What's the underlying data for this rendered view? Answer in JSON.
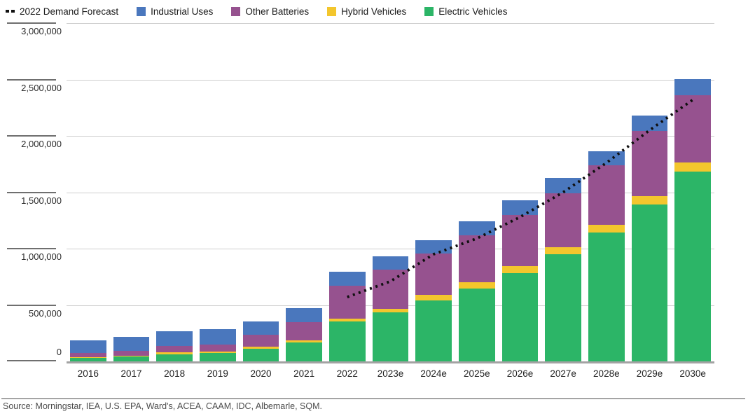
{
  "legend": {
    "items": [
      {
        "label": "2022 Demand Forecast",
        "type": "dotted-line",
        "color": "#111111"
      },
      {
        "label": "Industrial Uses",
        "type": "square",
        "color": "#4a77bd"
      },
      {
        "label": "Other Batteries",
        "type": "square",
        "color": "#96528f"
      },
      {
        "label": "Hybrid Vehicles",
        "type": "square",
        "color": "#f3c62d"
      },
      {
        "label": "Electric Vehicles",
        "type": "square",
        "color": "#2cb567"
      }
    ]
  },
  "y_axis": {
    "tick_labels": [
      "3,000,000",
      "2,500,000",
      "2,000,000",
      "1,500,000",
      "1,000,000",
      "500,000",
      "0"
    ]
  },
  "source": "Source: Morningstar, IEA, U.S. EPA, Ward's, ACEA, CAAM, IDC, Albemarle, SQM.",
  "colors": {
    "grid": "#cecece",
    "axis_baseline": "#a3a3a3",
    "tick_stub": "#6f6f6f",
    "forecast_line": "#0f0f0f"
  },
  "chart_data": {
    "type": "bar",
    "stacked": true,
    "grid": true,
    "legend_position": "top",
    "ylim": [
      0,
      3000000
    ],
    "y_tick_interval": 500000,
    "categories": [
      "2016",
      "2017",
      "2018",
      "2019",
      "2020",
      "2021",
      "2022",
      "2023e",
      "2024e",
      "2025e",
      "2026e",
      "2027e",
      "2028e",
      "2029e",
      "2030e"
    ],
    "series": [
      {
        "name": "Electric Vehicles",
        "color": "#2cb567",
        "values": [
          30000,
          45000,
          65000,
          75000,
          113000,
          165000,
          355000,
          433000,
          540000,
          648000,
          785000,
          950000,
          1140000,
          1390000,
          1685000
        ]
      },
      {
        "name": "Hybrid Vehicles",
        "color": "#f3c62d",
        "values": [
          5000,
          6000,
          14000,
          12000,
          16000,
          20000,
          21000,
          31000,
          50000,
          51000,
          62000,
          62000,
          72000,
          76000,
          80000
        ]
      },
      {
        "name": "Other Batteries",
        "color": "#96528f",
        "values": [
          40000,
          45000,
          58000,
          62000,
          110000,
          160000,
          295000,
          350000,
          365000,
          422000,
          452000,
          480000,
          529000,
          576000,
          596000
        ]
      },
      {
        "name": "Industrial Uses",
        "color": "#4a77bd",
        "values": [
          110000,
          119000,
          130000,
          138000,
          113000,
          125000,
          124000,
          119000,
          120000,
          123000,
          130000,
          134000,
          123000,
          140000,
          144000
        ]
      }
    ],
    "line_series": {
      "name": "2022 Demand Forecast",
      "style": "dotted",
      "color": "#0f0f0f",
      "x": [
        "2022",
        "2023e",
        "2024e",
        "2025e",
        "2026e",
        "2027e",
        "2028e",
        "2029e",
        "2030e"
      ],
      "values": [
        570000,
        710000,
        950000,
        1090000,
        1280000,
        1500000,
        1760000,
        2050000,
        2320000
      ]
    }
  }
}
